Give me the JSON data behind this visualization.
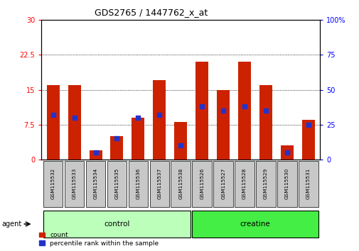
{
  "title": "GDS2765 / 1447762_x_at",
  "samples": [
    "GSM115532",
    "GSM115533",
    "GSM115534",
    "GSM115535",
    "GSM115536",
    "GSM115537",
    "GSM115538",
    "GSM115526",
    "GSM115527",
    "GSM115528",
    "GSM115529",
    "GSM115530",
    "GSM115531"
  ],
  "count_values": [
    16.0,
    16.0,
    2.0,
    5.0,
    9.0,
    17.0,
    8.0,
    21.0,
    15.0,
    21.0,
    16.0,
    3.0,
    8.5
  ],
  "percentile_values": [
    32.0,
    30.0,
    5.0,
    15.0,
    30.0,
    32.0,
    10.0,
    38.0,
    35.0,
    38.0,
    35.0,
    5.0,
    25.0
  ],
  "groups": [
    "control",
    "control",
    "control",
    "control",
    "control",
    "control",
    "control",
    "creatine",
    "creatine",
    "creatine",
    "creatine",
    "creatine",
    "creatine"
  ],
  "group_colors": {
    "control": "#bbffbb",
    "creatine": "#44ee44"
  },
  "bar_color": "#cc2200",
  "dot_color": "#2233cc",
  "ylim_left": [
    0,
    30
  ],
  "ylim_right": [
    0,
    100
  ],
  "yticks_left": [
    0,
    7.5,
    15,
    22.5,
    30
  ],
  "yticks_left_labels": [
    "0",
    "7.5",
    "15",
    "22.5",
    "30"
  ],
  "yticks_right": [
    0,
    25,
    50,
    75,
    100
  ],
  "yticks_right_labels": [
    "0",
    "25",
    "50",
    "75",
    "100%"
  ],
  "grid_yticks": [
    7.5,
    15,
    22.5
  ],
  "bar_width": 0.6,
  "agent_label": "agent",
  "legend_count_label": "count",
  "legend_pct_label": "percentile rank within the sample"
}
